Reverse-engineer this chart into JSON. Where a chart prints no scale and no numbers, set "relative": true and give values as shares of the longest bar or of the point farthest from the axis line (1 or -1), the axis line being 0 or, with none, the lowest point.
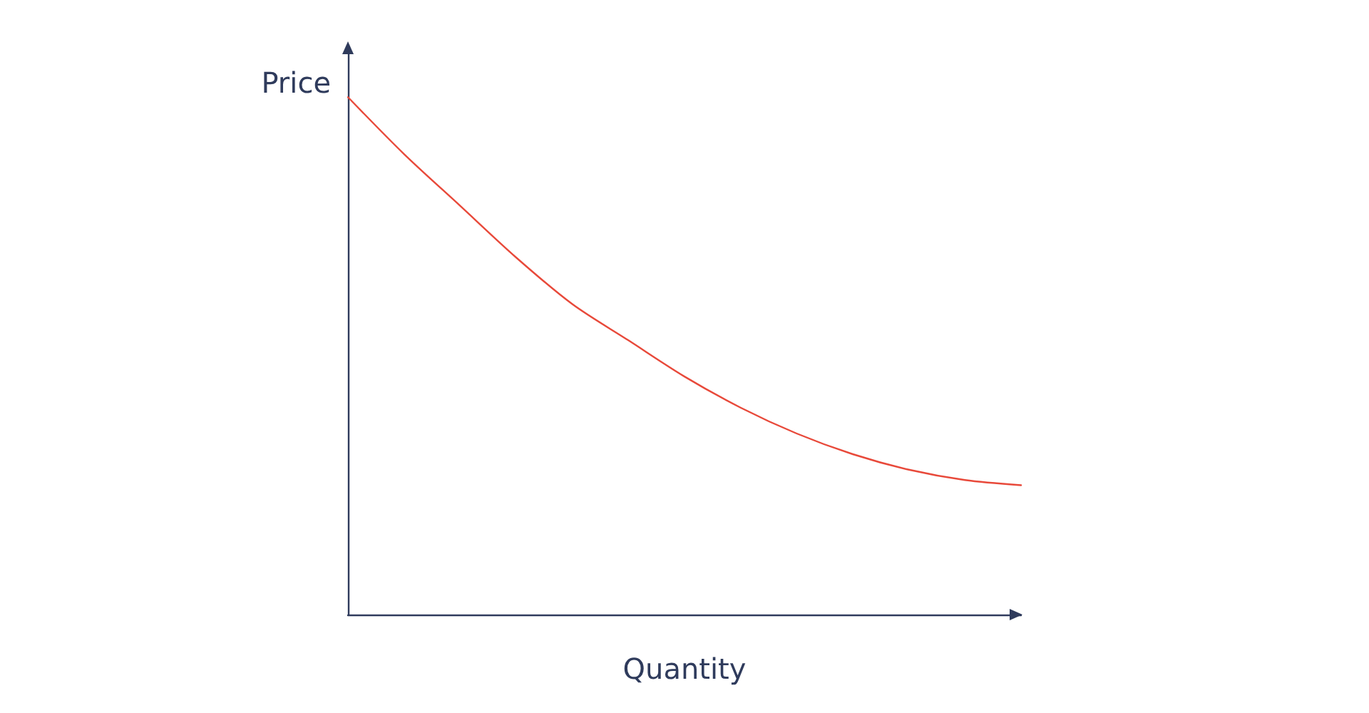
{
  "chart_data": {
    "type": "line",
    "xlabel": "Quantity",
    "ylabel": "Price",
    "relative": true,
    "categories": [
      null,
      null,
      null,
      null,
      null,
      null,
      null,
      null,
      null,
      null,
      null,
      null,
      null
    ],
    "series": [
      {
        "color": "#e8493a",
        "values": [
          1,
          0.89,
          0.79,
          0.69,
          0.6,
          0.53,
          0.46,
          0.4,
          0.35,
          0.31,
          0.28,
          0.26,
          0.25
        ]
      }
    ],
    "grid": false,
    "marker": "none",
    "line_style": "solid"
  }
}
